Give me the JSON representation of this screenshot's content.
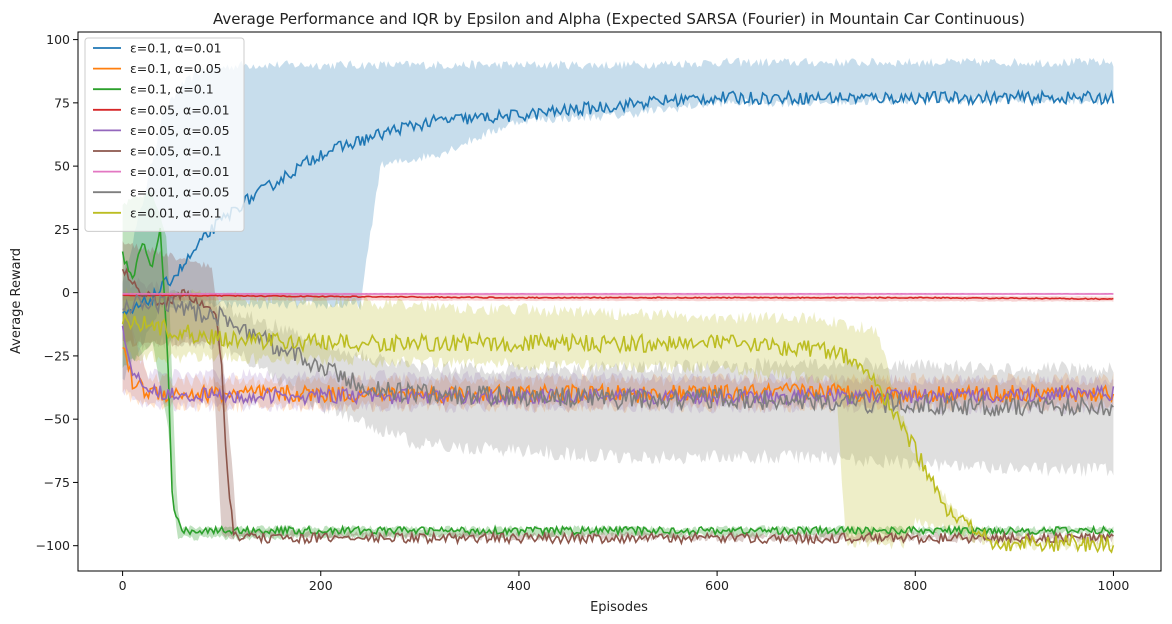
{
  "chart_data": {
    "type": "line",
    "title": "Average Performance and IQR by Epsilon and Alpha (Expected SARSA (Fourier) in Mountain Car Continuous)",
    "xlabel": "Episodes",
    "ylabel": "Average Reward",
    "xlim": [
      -45,
      1048
    ],
    "ylim": [
      -110,
      103
    ],
    "x_ticks": [
      0,
      200,
      400,
      600,
      800,
      1000
    ],
    "y_ticks": [
      -100,
      -75,
      -50,
      -25,
      0,
      25,
      50,
      75,
      100
    ],
    "x_tick_labels": [
      "0",
      "200",
      "400",
      "600",
      "800",
      "1000"
    ],
    "y_tick_labels": [
      "−100",
      "−75",
      "−50",
      "−25",
      "0",
      "25",
      "50",
      "75",
      "100"
    ],
    "grid": false,
    "legend_position": "upper-left",
    "shaded_band": "IQR",
    "series": [
      {
        "name": "ε=0.1, α=0.01",
        "color": "#1f77b4",
        "band_alpha": 0.25,
        "points": [
          [
            0,
            -10
          ],
          [
            30,
            -2
          ],
          [
            60,
            10
          ],
          [
            90,
            25
          ],
          [
            120,
            35
          ],
          [
            160,
            45
          ],
          [
            200,
            55
          ],
          [
            240,
            60
          ],
          [
            280,
            65
          ],
          [
            320,
            68
          ],
          [
            400,
            70
          ],
          [
            450,
            72
          ],
          [
            500,
            74
          ],
          [
            550,
            76
          ],
          [
            600,
            77
          ],
          [
            700,
            77
          ],
          [
            800,
            77
          ],
          [
            900,
            77
          ],
          [
            1000,
            77
          ]
        ],
        "lower": [
          [
            0,
            -35
          ],
          [
            40,
            -5
          ],
          [
            80,
            -5
          ],
          [
            120,
            -5
          ],
          [
            160,
            -5
          ],
          [
            200,
            -5
          ],
          [
            240,
            -5
          ],
          [
            260,
            50
          ],
          [
            320,
            55
          ],
          [
            400,
            68
          ],
          [
            500,
            70
          ],
          [
            600,
            75
          ],
          [
            700,
            75
          ],
          [
            800,
            76
          ],
          [
            900,
            76
          ],
          [
            1000,
            76
          ]
        ],
        "upper": [
          [
            0,
            5
          ],
          [
            20,
            35
          ],
          [
            40,
            70
          ],
          [
            60,
            82
          ],
          [
            80,
            88
          ],
          [
            120,
            90
          ],
          [
            200,
            90
          ],
          [
            300,
            90
          ],
          [
            400,
            90
          ],
          [
            500,
            90
          ],
          [
            600,
            91
          ],
          [
            700,
            91
          ],
          [
            800,
            91
          ],
          [
            900,
            91
          ],
          [
            1000,
            91
          ]
        ],
        "noise": 2.5
      },
      {
        "name": "ε=0.1, α=0.05",
        "color": "#ff7f0e",
        "band_alpha": 0.2,
        "points": [
          [
            0,
            -20
          ],
          [
            10,
            -35
          ],
          [
            25,
            -39
          ],
          [
            50,
            -40
          ],
          [
            100,
            -40
          ],
          [
            200,
            -40
          ],
          [
            300,
            -40
          ],
          [
            400,
            -40
          ],
          [
            500,
            -40
          ],
          [
            600,
            -40
          ],
          [
            700,
            -39
          ],
          [
            800,
            -40
          ],
          [
            900,
            -40
          ],
          [
            1000,
            -40
          ]
        ],
        "lower": [
          [
            0,
            -40
          ],
          [
            25,
            -44
          ],
          [
            100,
            -45
          ],
          [
            1000,
            -45
          ]
        ],
        "upper": [
          [
            0,
            -5
          ],
          [
            25,
            -34
          ],
          [
            100,
            -35
          ],
          [
            1000,
            -34
          ]
        ],
        "noise": 3.5
      },
      {
        "name": "ε=0.1, α=0.1",
        "color": "#2ca02c",
        "band_alpha": 0.3,
        "points": [
          [
            0,
            15
          ],
          [
            10,
            5
          ],
          [
            20,
            20
          ],
          [
            30,
            10
          ],
          [
            38,
            25
          ],
          [
            45,
            -20
          ],
          [
            50,
            -80
          ],
          [
            53,
            -90
          ],
          [
            56,
            -88
          ],
          [
            60,
            -94
          ],
          [
            100,
            -94
          ],
          [
            200,
            -94
          ],
          [
            400,
            -94
          ],
          [
            600,
            -94
          ],
          [
            800,
            -94
          ],
          [
            1000,
            -94
          ]
        ],
        "lower": [
          [
            0,
            -30
          ],
          [
            30,
            -20
          ],
          [
            45,
            -50
          ],
          [
            55,
            -97
          ],
          [
            1000,
            -95
          ]
        ],
        "upper": [
          [
            0,
            35
          ],
          [
            30,
            40
          ],
          [
            45,
            20
          ],
          [
            55,
            -85
          ],
          [
            60,
            -93
          ],
          [
            1000,
            -93
          ]
        ],
        "noise": 1.5
      },
      {
        "name": "ε=0.05, α=0.01",
        "color": "#d62728",
        "band_alpha": 0.2,
        "points": [
          [
            0,
            -1
          ],
          [
            200,
            -1.5
          ],
          [
            400,
            -2
          ],
          [
            600,
            -2
          ],
          [
            800,
            -2
          ],
          [
            1000,
            -2.5
          ]
        ],
        "lower": [
          [
            0,
            -3
          ],
          [
            1000,
            -3.5
          ]
        ],
        "upper": [
          [
            0,
            0
          ],
          [
            1000,
            -1.5
          ]
        ],
        "noise": 0.2
      },
      {
        "name": "ε=0.05, α=0.05",
        "color": "#9467bd",
        "band_alpha": 0.2,
        "points": [
          [
            0,
            -15
          ],
          [
            10,
            -30
          ],
          [
            25,
            -38
          ],
          [
            50,
            -40
          ],
          [
            100,
            -41
          ],
          [
            200,
            -41
          ],
          [
            400,
            -41
          ],
          [
            600,
            -41
          ],
          [
            800,
            -41
          ],
          [
            1000,
            -40
          ]
        ],
        "lower": [
          [
            0,
            -38
          ],
          [
            25,
            -45
          ],
          [
            1000,
            -46
          ]
        ],
        "upper": [
          [
            0,
            0
          ],
          [
            25,
            -32
          ],
          [
            1000,
            -35
          ]
        ],
        "noise": 3.0
      },
      {
        "name": "ε=0.05, α=0.1",
        "color": "#8c564b",
        "band_alpha": 0.3,
        "points": [
          [
            0,
            10
          ],
          [
            10,
            5
          ],
          [
            20,
            0
          ],
          [
            40,
            -5
          ],
          [
            60,
            0
          ],
          [
            80,
            -5
          ],
          [
            95,
            -10
          ],
          [
            100,
            -30
          ],
          [
            104,
            -60
          ],
          [
            108,
            -80
          ],
          [
            112,
            -94
          ],
          [
            116,
            -97
          ],
          [
            200,
            -97
          ],
          [
            400,
            -97
          ],
          [
            600,
            -97
          ],
          [
            800,
            -97
          ],
          [
            1000,
            -97
          ]
        ],
        "lower": [
          [
            0,
            -20
          ],
          [
            90,
            -20
          ],
          [
            100,
            -96
          ],
          [
            1000,
            -98
          ]
        ],
        "upper": [
          [
            0,
            20
          ],
          [
            90,
            10
          ],
          [
            100,
            -20
          ],
          [
            116,
            -95
          ],
          [
            1000,
            -96
          ]
        ],
        "noise": 2.0
      },
      {
        "name": "ε=0.01, α=0.01",
        "color": "#e377c2",
        "band_alpha": 0.2,
        "points": [
          [
            0,
            -0.5
          ],
          [
            1000,
            -0.5
          ]
        ],
        "lower": [
          [
            0,
            -1
          ],
          [
            1000,
            -1
          ]
        ],
        "upper": [
          [
            0,
            0
          ],
          [
            1000,
            0
          ]
        ],
        "noise": 0.05
      },
      {
        "name": "ε=0.01, α=0.05",
        "color": "#7f7f7f",
        "band_alpha": 0.25,
        "points": [
          [
            0,
            -5
          ],
          [
            50,
            -5
          ],
          [
            100,
            -10
          ],
          [
            150,
            -20
          ],
          [
            200,
            -30
          ],
          [
            250,
            -38
          ],
          [
            300,
            -40
          ],
          [
            400,
            -41
          ],
          [
            500,
            -42
          ],
          [
            600,
            -42
          ],
          [
            700,
            -43
          ],
          [
            800,
            -44
          ],
          [
            900,
            -45
          ],
          [
            1000,
            -45
          ]
        ],
        "lower": [
          [
            0,
            -20
          ],
          [
            100,
            -20
          ],
          [
            200,
            -45
          ],
          [
            300,
            -60
          ],
          [
            500,
            -65
          ],
          [
            700,
            -65
          ],
          [
            900,
            -70
          ],
          [
            1000,
            -70
          ]
        ],
        "upper": [
          [
            0,
            5
          ],
          [
            100,
            -5
          ],
          [
            200,
            -20
          ],
          [
            300,
            -30
          ],
          [
            500,
            -30
          ],
          [
            700,
            -28
          ],
          [
            900,
            -30
          ],
          [
            1000,
            -30
          ]
        ],
        "noise": 4.0
      },
      {
        "name": "ε=0.01, α=0.1",
        "color": "#bcbd22",
        "band_alpha": 0.25,
        "points": [
          [
            0,
            -10
          ],
          [
            20,
            -12
          ],
          [
            50,
            -15
          ],
          [
            100,
            -18
          ],
          [
            200,
            -20
          ],
          [
            300,
            -20
          ],
          [
            400,
            -20
          ],
          [
            500,
            -20
          ],
          [
            600,
            -20
          ],
          [
            700,
            -22
          ],
          [
            730,
            -25
          ],
          [
            750,
            -30
          ],
          [
            770,
            -42
          ],
          [
            790,
            -55
          ],
          [
            810,
            -70
          ],
          [
            830,
            -85
          ],
          [
            850,
            -92
          ],
          [
            870,
            -97
          ],
          [
            880,
            -99
          ],
          [
            1000,
            -99
          ]
        ],
        "lower": [
          [
            0,
            -25
          ],
          [
            600,
            -30
          ],
          [
            720,
            -35
          ],
          [
            730,
            -99
          ],
          [
            790,
            -99
          ],
          [
            800,
            -90
          ],
          [
            880,
            -99.5
          ],
          [
            1000,
            -99.5
          ]
        ],
        "upper": [
          [
            0,
            0
          ],
          [
            600,
            -10
          ],
          [
            700,
            -10
          ],
          [
            760,
            -15
          ],
          [
            780,
            -40
          ],
          [
            800,
            -65
          ],
          [
            850,
            -90
          ],
          [
            880,
            -98
          ],
          [
            1000,
            -98.5
          ]
        ],
        "noise": 3.5
      }
    ]
  }
}
